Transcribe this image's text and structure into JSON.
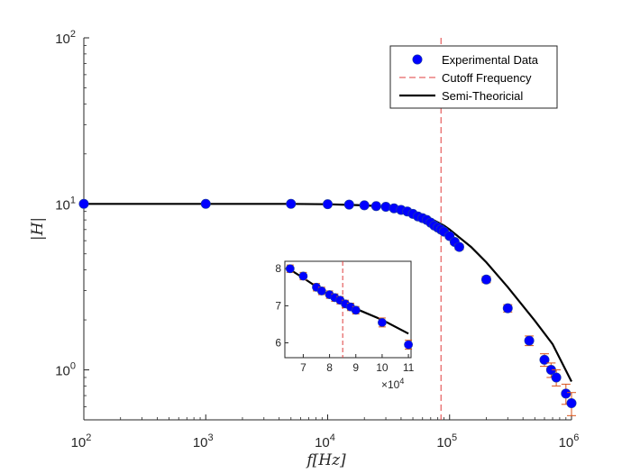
{
  "chart_data": {
    "type": "scatter",
    "xlabel": "f[Hz]",
    "ylabel": "|H|",
    "xscale": "log",
    "yscale": "log",
    "xlim": [
      100,
      1000000
    ],
    "ylim": [
      0.5,
      100
    ],
    "x_ticks": [
      100,
      1000,
      10000,
      100000,
      1000000
    ],
    "x_tick_labels": [
      {
        "base": "10",
        "exp": "2"
      },
      {
        "base": "10",
        "exp": "3"
      },
      {
        "base": "10",
        "exp": "4"
      },
      {
        "base": "10",
        "exp": "5"
      },
      {
        "base": "10",
        "exp": "6"
      }
    ],
    "y_ticks": [
      1,
      10,
      100
    ],
    "y_tick_labels": [
      {
        "base": "10",
        "exp": "0"
      },
      {
        "base": "10",
        "exp": "1"
      },
      {
        "base": "10",
        "exp": "2"
      }
    ],
    "grid": false,
    "legend_position": "top-right",
    "legend": [
      "Experimental Data",
      "Cutoff Frequency",
      "Semi-Theoricial"
    ],
    "cutoff_frequency": 85000,
    "experimental": {
      "color": "#0000ff",
      "error_color": "#d95319",
      "points": [
        {
          "x": 100,
          "y": 10.0,
          "err": 0.2
        },
        {
          "x": 1000,
          "y": 10.0,
          "err": 0.2
        },
        {
          "x": 5000,
          "y": 10.0,
          "err": 0.2
        },
        {
          "x": 10000,
          "y": 9.95,
          "err": 0.2
        },
        {
          "x": 15000,
          "y": 9.9,
          "err": 0.2
        },
        {
          "x": 20000,
          "y": 9.8,
          "err": 0.2
        },
        {
          "x": 25000,
          "y": 9.7,
          "err": 0.2
        },
        {
          "x": 30000,
          "y": 9.6,
          "err": 0.2
        },
        {
          "x": 35000,
          "y": 9.4,
          "err": 0.2
        },
        {
          "x": 40000,
          "y": 9.2,
          "err": 0.2
        },
        {
          "x": 45000,
          "y": 9.0,
          "err": 0.2
        },
        {
          "x": 50000,
          "y": 8.7,
          "err": 0.2
        },
        {
          "x": 55000,
          "y": 8.4,
          "err": 0.2
        },
        {
          "x": 60000,
          "y": 8.2,
          "err": 0.2
        },
        {
          "x": 65000,
          "y": 8.0,
          "err": 0.2
        },
        {
          "x": 70000,
          "y": 7.7,
          "err": 0.2
        },
        {
          "x": 75000,
          "y": 7.4,
          "err": 0.2
        },
        {
          "x": 80000,
          "y": 7.2,
          "err": 0.2
        },
        {
          "x": 85000,
          "y": 7.0,
          "err": 0.2
        },
        {
          "x": 90000,
          "y": 6.8,
          "err": 0.2
        },
        {
          "x": 100000,
          "y": 6.4,
          "err": 0.2
        },
        {
          "x": 110000,
          "y": 5.9,
          "err": 0.2
        },
        {
          "x": 120000,
          "y": 5.5,
          "err": 0.2
        },
        {
          "x": 200000,
          "y": 3.5,
          "err": 0.15
        },
        {
          "x": 300000,
          "y": 2.35,
          "err": 0.12
        },
        {
          "x": 450000,
          "y": 1.5,
          "err": 0.1
        },
        {
          "x": 600000,
          "y": 1.15,
          "err": 0.1
        },
        {
          "x": 680000,
          "y": 1.0,
          "err": 0.1
        },
        {
          "x": 750000,
          "y": 0.9,
          "err": 0.1
        },
        {
          "x": 900000,
          "y": 0.72,
          "err": 0.1
        },
        {
          "x": 1000000,
          "y": 0.63,
          "err": 0.1
        }
      ]
    },
    "semi_theoretical": {
      "color": "#000000",
      "x": [
        100,
        1000,
        5000,
        10000,
        20000,
        30000,
        40000,
        50000,
        60000,
        70000,
        80000,
        90000,
        100000,
        150000,
        200000,
        300000,
        500000,
        700000,
        1000000
      ],
      "y": [
        10.0,
        10.0,
        9.99,
        9.95,
        9.8,
        9.6,
        9.3,
        8.95,
        8.55,
        8.15,
        7.75,
        7.4,
        7.0,
        5.5,
        4.45,
        3.15,
        1.98,
        1.43,
        0.85
      ]
    },
    "inset": {
      "x_ticks": [
        70000,
        80000,
        90000,
        100000,
        110000
      ],
      "x_tick_labels": [
        "7",
        "8",
        "9",
        "10",
        "11"
      ],
      "x_exponent_base": "×10",
      "x_exponent": "4",
      "y_ticks": [
        6,
        7,
        8
      ],
      "y_tick_labels": [
        "6",
        "7",
        "8"
      ],
      "xlim": [
        63000,
        111000
      ],
      "ylim": [
        5.6,
        8.2
      ],
      "cutoff_frequency": 85000,
      "points": [
        {
          "x": 65000,
          "y": 8.0,
          "err": 0.1
        },
        {
          "x": 70000,
          "y": 7.8,
          "err": 0.1
        },
        {
          "x": 75000,
          "y": 7.5,
          "err": 0.1
        },
        {
          "x": 77000,
          "y": 7.4,
          "err": 0.1
        },
        {
          "x": 80000,
          "y": 7.3,
          "err": 0.1
        },
        {
          "x": 82000,
          "y": 7.22,
          "err": 0.1
        },
        {
          "x": 84000,
          "y": 7.15,
          "err": 0.1
        },
        {
          "x": 86000,
          "y": 7.05,
          "err": 0.1
        },
        {
          "x": 88000,
          "y": 6.97,
          "err": 0.1
        },
        {
          "x": 90000,
          "y": 6.88,
          "err": 0.1
        },
        {
          "x": 100000,
          "y": 6.55,
          "err": 0.12
        },
        {
          "x": 110000,
          "y": 5.95,
          "err": 0.12
        }
      ],
      "curve_x": [
        64000,
        70000,
        80000,
        85000,
        90000,
        100000,
        110000
      ],
      "curve_y": [
        8.02,
        7.75,
        7.28,
        7.08,
        6.92,
        6.62,
        6.25
      ]
    }
  }
}
